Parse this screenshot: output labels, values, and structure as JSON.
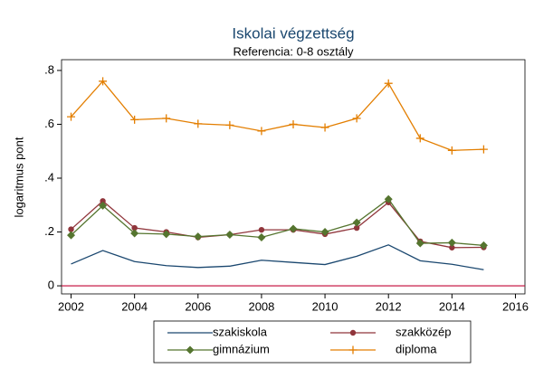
{
  "chart_data": {
    "type": "line",
    "title": "Iskolai végzettség",
    "subtitle": "Referencia: 0-8 osztály",
    "y_label": "logaritmus pont",
    "x": [
      2002,
      2003,
      2004,
      2005,
      2006,
      2007,
      2008,
      2009,
      2010,
      2011,
      2012,
      2013,
      2014,
      2015
    ],
    "series": [
      {
        "name": "szakiskola",
        "color": "#1a476f",
        "marker": "none",
        "values": [
          0.081,
          0.131,
          0.09,
          0.075,
          0.068,
          0.073,
          0.095,
          0.087,
          0.079,
          0.11,
          0.152,
          0.093,
          0.08,
          0.06
        ]
      },
      {
        "name": "szakközép",
        "color": "#90353b",
        "marker": "circle",
        "values": [
          0.21,
          0.315,
          0.215,
          0.2,
          0.18,
          0.19,
          0.208,
          0.208,
          0.192,
          0.215,
          0.31,
          0.165,
          0.142,
          0.143
        ]
      },
      {
        "name": "gimnázium",
        "color": "#55752f",
        "marker": "diamond",
        "values": [
          0.188,
          0.298,
          0.195,
          0.192,
          0.183,
          0.19,
          0.18,
          0.212,
          0.2,
          0.235,
          0.322,
          0.158,
          0.16,
          0.15
        ]
      },
      {
        "name": "diploma",
        "color": "#e37e00",
        "marker": "plus",
        "values": [
          0.628,
          0.76,
          0.617,
          0.622,
          0.602,
          0.597,
          0.575,
          0.6,
          0.588,
          0.622,
          0.752,
          0.548,
          0.503,
          0.507
        ]
      }
    ],
    "xlim": [
      2001.7,
      2016.3
    ],
    "xticks": [
      2002,
      2004,
      2006,
      2008,
      2010,
      2012,
      2014,
      2016
    ],
    "ylim": [
      -0.03,
      0.84
    ],
    "yticks": [
      0,
      {
        "value": 0.2,
        "label": ".2"
      },
      {
        "value": 0.4,
        "label": ".4"
      },
      {
        "value": 0.6,
        "label": ".6"
      },
      {
        "value": 0.8,
        "label": ".8"
      }
    ],
    "reference_line": {
      "value": 0,
      "color": "#c10534"
    },
    "grid": false,
    "legend": "bottom"
  }
}
